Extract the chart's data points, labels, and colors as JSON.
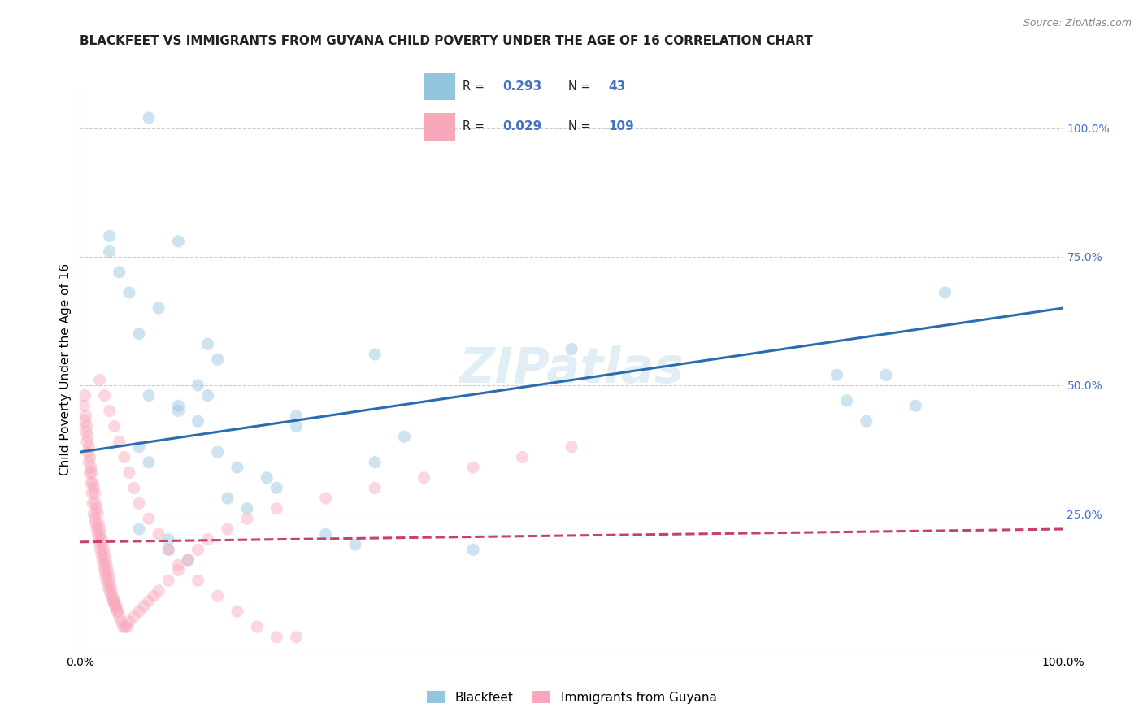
{
  "title": "BLACKFEET VS IMMIGRANTS FROM GUYANA CHILD POVERTY UNDER THE AGE OF 16 CORRELATION CHART",
  "source": "Source: ZipAtlas.com",
  "ylabel": "Child Poverty Under the Age of 16",
  "xlim": [
    0,
    1
  ],
  "ylim": [
    -0.02,
    1.08
  ],
  "xticks": [
    0,
    0.25,
    0.5,
    0.75,
    1.0
  ],
  "yticks": [
    0,
    0.25,
    0.5,
    0.75,
    1.0
  ],
  "xticklabels": [
    "0.0%",
    "",
    "",
    "",
    "100.0%"
  ],
  "right_yticklabels": [
    "",
    "25.0%",
    "50.0%",
    "75.0%",
    "100.0%"
  ],
  "legend_labels": [
    "Blackfeet",
    "Immigrants from Guyana"
  ],
  "blue_color": "#92c5de",
  "pink_color": "#f9a8bc",
  "blue_line_color": "#2b6cb0",
  "pink_line_color": "#c94070",
  "R_blue": 0.293,
  "N_blue": 43,
  "R_pink": 0.029,
  "N_pink": 109,
  "watermark": "ZIPatlas",
  "blue_points_x": [
    0.07,
    0.1,
    0.03,
    0.03,
    0.04,
    0.05,
    0.08,
    0.06,
    0.13,
    0.14,
    0.22,
    0.22,
    0.3,
    0.5,
    0.1,
    0.12,
    0.06,
    0.09,
    0.88,
    0.82,
    0.85,
    0.78,
    0.8,
    0.77,
    0.06,
    0.07,
    0.3,
    0.33,
    0.14,
    0.16,
    0.19,
    0.2,
    0.15,
    0.17,
    0.07,
    0.1,
    0.12,
    0.13,
    0.09,
    0.11,
    0.25,
    0.28,
    0.4
  ],
  "blue_points_y": [
    1.02,
    0.78,
    0.79,
    0.76,
    0.72,
    0.68,
    0.65,
    0.6,
    0.58,
    0.55,
    0.44,
    0.42,
    0.56,
    0.57,
    0.46,
    0.43,
    0.22,
    0.2,
    0.68,
    0.52,
    0.46,
    0.47,
    0.43,
    0.52,
    0.38,
    0.35,
    0.35,
    0.4,
    0.37,
    0.34,
    0.32,
    0.3,
    0.28,
    0.26,
    0.48,
    0.45,
    0.5,
    0.48,
    0.18,
    0.16,
    0.21,
    0.19,
    0.18
  ],
  "pink_points_x": [
    0.005,
    0.006,
    0.007,
    0.008,
    0.009,
    0.01,
    0.011,
    0.012,
    0.013,
    0.014,
    0.015,
    0.016,
    0.017,
    0.018,
    0.019,
    0.02,
    0.021,
    0.022,
    0.023,
    0.024,
    0.025,
    0.026,
    0.027,
    0.028,
    0.029,
    0.03,
    0.031,
    0.032,
    0.033,
    0.034,
    0.035,
    0.036,
    0.037,
    0.038,
    0.004,
    0.005,
    0.006,
    0.007,
    0.008,
    0.009,
    0.01,
    0.011,
    0.012,
    0.013,
    0.014,
    0.015,
    0.016,
    0.017,
    0.018,
    0.019,
    0.02,
    0.021,
    0.022,
    0.023,
    0.024,
    0.025,
    0.026,
    0.027,
    0.028,
    0.03,
    0.032,
    0.034,
    0.036,
    0.038,
    0.04,
    0.042,
    0.044,
    0.046,
    0.048,
    0.05,
    0.055,
    0.06,
    0.065,
    0.07,
    0.075,
    0.08,
    0.09,
    0.1,
    0.11,
    0.12,
    0.13,
    0.15,
    0.17,
    0.2,
    0.25,
    0.3,
    0.35,
    0.4,
    0.45,
    0.5,
    0.02,
    0.025,
    0.03,
    0.035,
    0.04,
    0.045,
    0.05,
    0.055,
    0.06,
    0.07,
    0.08,
    0.09,
    0.1,
    0.12,
    0.14,
    0.16,
    0.18,
    0.2,
    0.22
  ],
  "pink_points_y": [
    0.48,
    0.44,
    0.42,
    0.4,
    0.38,
    0.36,
    0.34,
    0.33,
    0.31,
    0.3,
    0.29,
    0.27,
    0.26,
    0.25,
    0.23,
    0.22,
    0.21,
    0.2,
    0.19,
    0.18,
    0.17,
    0.16,
    0.15,
    0.14,
    0.13,
    0.12,
    0.11,
    0.1,
    0.09,
    0.08,
    0.08,
    0.07,
    0.07,
    0.06,
    0.46,
    0.43,
    0.41,
    0.39,
    0.37,
    0.35,
    0.33,
    0.31,
    0.29,
    0.27,
    0.25,
    0.24,
    0.23,
    0.22,
    0.21,
    0.2,
    0.19,
    0.18,
    0.17,
    0.16,
    0.15,
    0.14,
    0.13,
    0.12,
    0.11,
    0.1,
    0.09,
    0.08,
    0.07,
    0.06,
    0.05,
    0.04,
    0.03,
    0.03,
    0.03,
    0.04,
    0.05,
    0.06,
    0.07,
    0.08,
    0.09,
    0.1,
    0.12,
    0.14,
    0.16,
    0.18,
    0.2,
    0.22,
    0.24,
    0.26,
    0.28,
    0.3,
    0.32,
    0.34,
    0.36,
    0.38,
    0.51,
    0.48,
    0.45,
    0.42,
    0.39,
    0.36,
    0.33,
    0.3,
    0.27,
    0.24,
    0.21,
    0.18,
    0.15,
    0.12,
    0.09,
    0.06,
    0.03,
    0.01,
    0.01
  ],
  "blue_line_y_start": 0.37,
  "blue_line_y_end": 0.65,
  "pink_line_y_start": 0.195,
  "pink_line_y_end": 0.22,
  "grid_color": "#cccccc",
  "background_color": "#ffffff",
  "title_fontsize": 11,
  "label_fontsize": 11,
  "tick_fontsize": 10,
  "right_tick_color": "#4472c4",
  "marker_size": 120,
  "marker_alpha": 0.45,
  "line_width": 2.2
}
